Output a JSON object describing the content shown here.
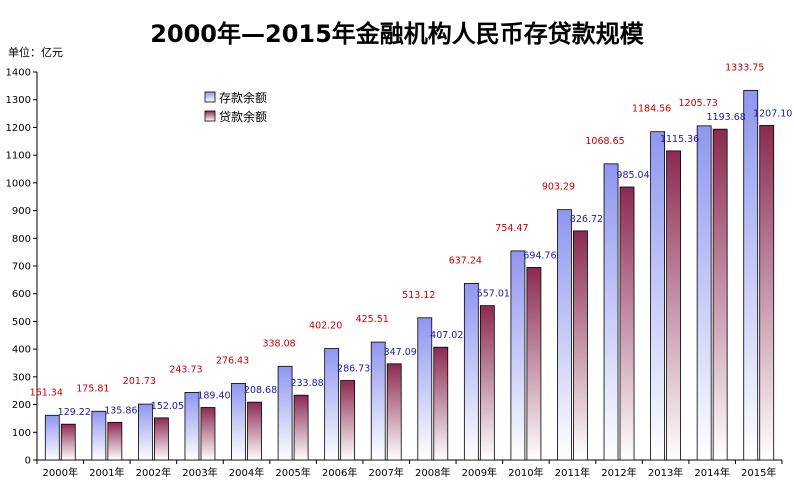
{
  "chart_data": {
    "type": "bar",
    "title": "2000年—2015年金融机构人民币存贷款规模",
    "unit": "单位：亿元",
    "categories": [
      "2000年",
      "2001年",
      "2002年",
      "2003年",
      "2004年",
      "2005年",
      "2006年",
      "2007年",
      "2008年",
      "2009年",
      "2010年",
      "2011年",
      "2012年",
      "2013年",
      "2014年",
      "2015年"
    ],
    "ylim": [
      0,
      1400
    ],
    "yticks": [
      0,
      100,
      200,
      300,
      400,
      500,
      600,
      700,
      800,
      900,
      1000,
      1100,
      1200,
      1300,
      1400
    ],
    "legend_position": "top-left",
    "series": [
      {
        "name": "存款余额",
        "color": "#8f96f0",
        "label_color": "#cc0000",
        "values": [
          161.34,
          175.81,
          201.73,
          243.73,
          276.43,
          338.08,
          402.2,
          425.51,
          513.12,
          637.24,
          754.47,
          903.29,
          1068.65,
          1184.56,
          1205.73,
          1333.75
        ],
        "labels": [
          "161.34",
          "175.81",
          "201.73",
          "243.73",
          "276.43",
          "338.08",
          "402.20",
          "425.51",
          "513.12",
          "637.24",
          "754.47",
          "903.29",
          "1068.65",
          "1184.56",
          "1205.73",
          "1333.75"
        ]
      },
      {
        "name": "贷款余额",
        "color": "#8c2a52",
        "label_color": "#1a1aa6",
        "values": [
          129.22,
          135.86,
          152.05,
          189.4,
          208.68,
          233.88,
          286.73,
          347.09,
          407.02,
          557.01,
          694.76,
          826.72,
          985.04,
          1115.36,
          1193.68,
          1207.1
        ],
        "labels": [
          "129.22",
          "135.86",
          "152.05",
          "189.40",
          "208.68",
          "233.88",
          "286.73",
          "347.09",
          "407.02",
          "557.01",
          "694.76",
          "826.72",
          "985.04",
          "1115.36",
          "1193.68",
          "1207.10"
        ]
      }
    ]
  }
}
